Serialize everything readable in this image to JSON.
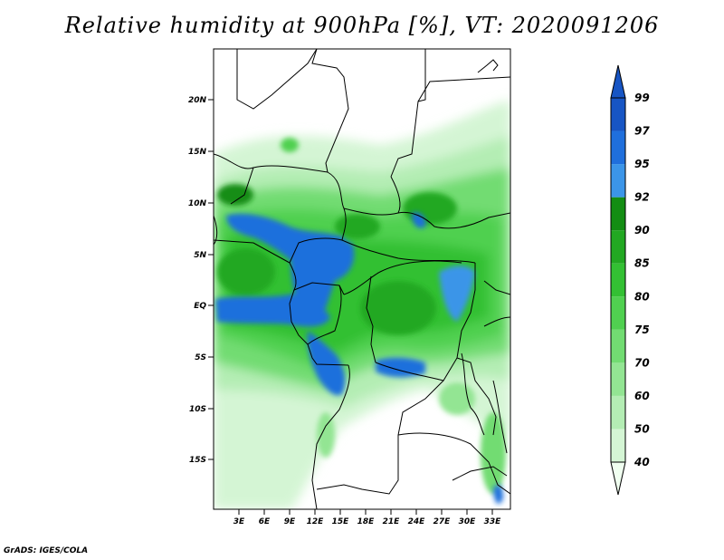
{
  "title": "Relative humidity at 900hPa [%], VT: 2020091206",
  "credit": "GrADS: IGES/COLA",
  "map": {
    "lat_labels": [
      "20N",
      "15N",
      "10N",
      "5N",
      "EQ",
      "5S",
      "10S",
      "15S"
    ],
    "lon_labels": [
      "3E",
      "6E",
      "9E",
      "12E",
      "15E",
      "18E",
      "21E",
      "24E",
      "27E",
      "30E",
      "33E"
    ]
  },
  "colorbar": {
    "levels": [
      "40",
      "50",
      "60",
      "70",
      "75",
      "80",
      "85",
      "90",
      "92",
      "95",
      "97",
      "99"
    ],
    "colors": [
      "#f0fff0",
      "#d4f5d4",
      "#b4edb4",
      "#93e593",
      "#72dc72",
      "#50d050",
      "#33c033",
      "#22a822",
      "#138d13",
      "#3b95e8",
      "#1f6fdc",
      "#1755c4"
    ]
  }
}
